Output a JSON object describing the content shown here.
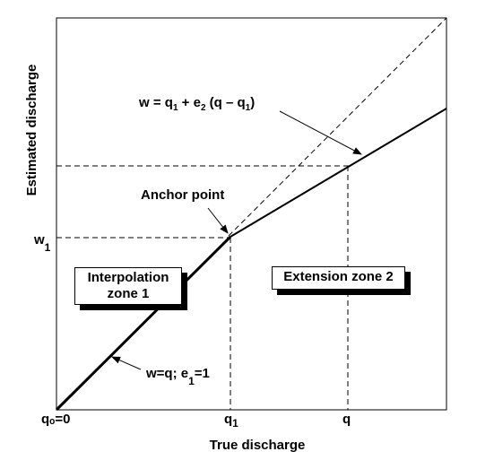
{
  "title": "",
  "axes": {
    "xlabel": "True discharge",
    "ylabel": "Estimated discharge"
  },
  "ticks": {
    "origin": "qₒ=0",
    "x_q1_main": "q",
    "x_q1_sub": "1",
    "x_q": "q",
    "y_w1_main": "w",
    "y_w1_sub": "1"
  },
  "annotations": {
    "anchor_point": "Anchor point",
    "extension_formula": {
      "part1": "w = q",
      "part1_sub": "1",
      "part2": " + e",
      "part2_sub": "2",
      "part3": "  (q – q",
      "part3_sub": "1",
      "part4": ")"
    },
    "zone1_formula": {
      "part1": "w=q; e",
      "part1_sub": "1",
      "part2": "=1"
    }
  },
  "zones": {
    "interpolation": {
      "line1": "Interpolation",
      "line2": "zone 1"
    },
    "extension": {
      "line1": "Extension zone 2"
    }
  },
  "colors": {
    "line": "#000000",
    "background": "#ffffff"
  }
}
